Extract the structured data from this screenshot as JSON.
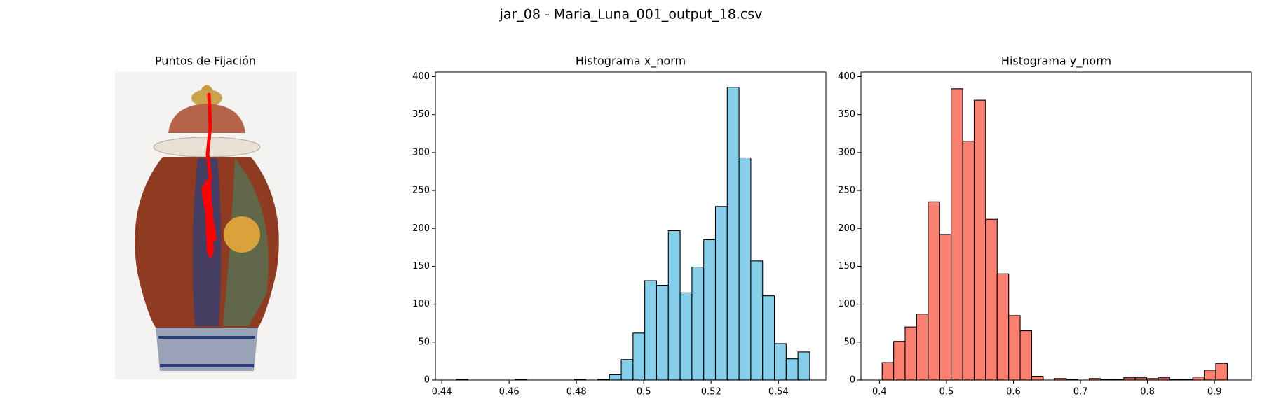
{
  "title": "jar_08 - Maria_Luna_001_output_18.csv",
  "image_panel": {
    "title": "Puntos de Fijación"
  },
  "chart_data": [
    {
      "type": "histogram",
      "title": "Histograma x_norm",
      "color": "#87ceeb",
      "edgecolor": "#000000",
      "bins": [
        0.4443,
        0.4478,
        0.4513,
        0.4548,
        0.4583,
        0.4618,
        0.4653,
        0.4688,
        0.4723,
        0.4758,
        0.4793,
        0.4828,
        0.4863,
        0.4898,
        0.4933,
        0.4968,
        0.5003,
        0.5038,
        0.5073,
        0.5108,
        0.5143,
        0.5178,
        0.5213,
        0.5248,
        0.5283,
        0.5318,
        0.5353,
        0.5388,
        0.5423,
        0.5458,
        0.5493
      ],
      "values": [
        1,
        0,
        0,
        0,
        0,
        1,
        0,
        0,
        0,
        0,
        1,
        0,
        1,
        7,
        27,
        62,
        131,
        125,
        197,
        115,
        149,
        185,
        229,
        386,
        293,
        157,
        111,
        48,
        28,
        37
      ],
      "xlim": [
        0.4381,
        0.5541
      ],
      "xticks": [
        0.44,
        0.46,
        0.48,
        0.5,
        0.52,
        0.54
      ],
      "ylim": [
        0,
        406
      ],
      "yticks": [
        0,
        50,
        100,
        150,
        200,
        250,
        300,
        350,
        400
      ]
    },
    {
      "type": "histogram",
      "title": "Histograma y_norm",
      "color": "#fa8072",
      "edgecolor": "#000000",
      "bins": [
        0.404,
        0.4212,
        0.4383,
        0.4555,
        0.4727,
        0.4899,
        0.507,
        0.5242,
        0.5414,
        0.5585,
        0.5757,
        0.5929,
        0.61,
        0.6272,
        0.6444,
        0.6616,
        0.6787,
        0.6959,
        0.7131,
        0.7302,
        0.7474,
        0.7646,
        0.7817,
        0.7989,
        0.8161,
        0.8333,
        0.8504,
        0.8676,
        0.8848,
        0.9019,
        0.9191
      ],
      "values": [
        23,
        51,
        70,
        87,
        235,
        192,
        384,
        315,
        369,
        212,
        140,
        85,
        65,
        5,
        0,
        2,
        1,
        0,
        2,
        1,
        1,
        3,
        3,
        2,
        3,
        1,
        1,
        4,
        13,
        22
      ],
      "xlim": [
        0.3724,
        0.9553
      ],
      "xticks": [
        0.4,
        0.5,
        0.6,
        0.7,
        0.8,
        0.9
      ],
      "ylim": [
        0,
        406
      ],
      "yticks": [
        0,
        50,
        100,
        150,
        200,
        250,
        300,
        350,
        400
      ]
    }
  ]
}
